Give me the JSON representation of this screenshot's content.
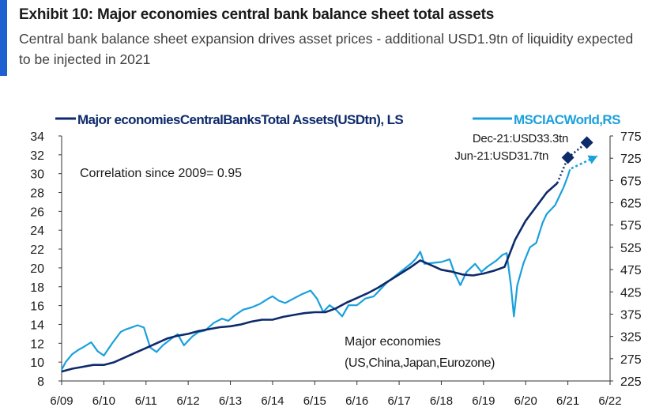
{
  "header": {
    "title": "Exhibit 10: Major economies central bank balance sheet total assets",
    "subtitle": "Central bank balance sheet expansion drives asset prices - additional USD1.9tn of liquidity expected to be injected in 2021"
  },
  "colors": {
    "accent": "#1f5fd0",
    "series_ls": "#0d2a6b",
    "series_rs": "#1aa0dc"
  },
  "chart_data": {
    "type": "line",
    "title": "",
    "x_ticks": [
      "6/09",
      "6/10",
      "6/11",
      "6/12",
      "6/13",
      "6/14",
      "6/15",
      "6/16",
      "6/17",
      "6/18",
      "6/19",
      "6/20",
      "6/21",
      "6/22"
    ],
    "y_left": {
      "min": 8,
      "max": 34,
      "ticks": [
        8,
        10,
        12,
        14,
        16,
        18,
        20,
        22,
        24,
        26,
        28,
        30,
        32,
        34
      ]
    },
    "y_right": {
      "min": 225,
      "max": 775,
      "ticks": [
        225,
        275,
        325,
        375,
        425,
        475,
        525,
        575,
        625,
        675,
        725,
        775
      ]
    },
    "legend_position": "top",
    "series": [
      {
        "name": "Major economies Central Banks Total Assets (USD tn), LS",
        "legend_label": "Major economiesCentralBanksTotal Assets(USDtn), LS",
        "axis": "left",
        "color": "#0d2a6b",
        "points": [
          [
            2009.5,
            9.0
          ],
          [
            2009.75,
            9.3
          ],
          [
            2010.0,
            9.5
          ],
          [
            2010.25,
            9.7
          ],
          [
            2010.5,
            9.7
          ],
          [
            2010.75,
            10.0
          ],
          [
            2011.0,
            10.5
          ],
          [
            2011.25,
            11.0
          ],
          [
            2011.5,
            11.5
          ],
          [
            2011.75,
            12.0
          ],
          [
            2012.0,
            12.5
          ],
          [
            2012.25,
            12.8
          ],
          [
            2012.5,
            13.0
          ],
          [
            2012.75,
            13.3
          ],
          [
            2013.0,
            13.5
          ],
          [
            2013.25,
            13.7
          ],
          [
            2013.5,
            13.8
          ],
          [
            2013.75,
            14.0
          ],
          [
            2014.0,
            14.3
          ],
          [
            2014.25,
            14.5
          ],
          [
            2014.5,
            14.5
          ],
          [
            2014.75,
            14.8
          ],
          [
            2015.0,
            15.0
          ],
          [
            2015.25,
            15.2
          ],
          [
            2015.5,
            15.3
          ],
          [
            2015.75,
            15.3
          ],
          [
            2016.0,
            15.7
          ],
          [
            2016.25,
            16.3
          ],
          [
            2016.5,
            16.8
          ],
          [
            2016.75,
            17.3
          ],
          [
            2017.0,
            17.9
          ],
          [
            2017.25,
            18.6
          ],
          [
            2017.5,
            19.3
          ],
          [
            2017.75,
            20.0
          ],
          [
            2018.0,
            20.8
          ],
          [
            2018.25,
            20.3
          ],
          [
            2018.5,
            19.8
          ],
          [
            2018.75,
            19.6
          ],
          [
            2019.0,
            19.3
          ],
          [
            2019.25,
            19.2
          ],
          [
            2019.5,
            19.4
          ],
          [
            2019.75,
            19.7
          ],
          [
            2020.0,
            20.1
          ],
          [
            2020.25,
            23.0
          ],
          [
            2020.5,
            25.0
          ],
          [
            2020.75,
            26.5
          ],
          [
            2021.0,
            28.0
          ],
          [
            2021.25,
            29.0
          ]
        ]
      },
      {
        "name": "MSCI AC World, RS",
        "legend_label": "MSCIACWorld,RS",
        "axis": "right",
        "color": "#1aa0dc",
        "points": [
          [
            2009.5,
            250
          ],
          [
            2009.6,
            268
          ],
          [
            2009.75,
            285
          ],
          [
            2009.9,
            295
          ],
          [
            2010.0,
            300
          ],
          [
            2010.2,
            312
          ],
          [
            2010.35,
            292
          ],
          [
            2010.5,
            282
          ],
          [
            2010.7,
            310
          ],
          [
            2010.9,
            335
          ],
          [
            2011.0,
            340
          ],
          [
            2011.15,
            345
          ],
          [
            2011.3,
            350
          ],
          [
            2011.45,
            345
          ],
          [
            2011.6,
            300
          ],
          [
            2011.75,
            290
          ],
          [
            2011.9,
            305
          ],
          [
            2012.1,
            320
          ],
          [
            2012.25,
            330
          ],
          [
            2012.4,
            305
          ],
          [
            2012.6,
            325
          ],
          [
            2012.75,
            335
          ],
          [
            2012.9,
            338
          ],
          [
            2013.1,
            355
          ],
          [
            2013.3,
            365
          ],
          [
            2013.45,
            360
          ],
          [
            2013.6,
            372
          ],
          [
            2013.8,
            385
          ],
          [
            2014.0,
            390
          ],
          [
            2014.2,
            398
          ],
          [
            2014.4,
            410
          ],
          [
            2014.5,
            415
          ],
          [
            2014.65,
            405
          ],
          [
            2014.8,
            400
          ],
          [
            2015.0,
            410
          ],
          [
            2015.2,
            420
          ],
          [
            2015.4,
            428
          ],
          [
            2015.55,
            410
          ],
          [
            2015.7,
            380
          ],
          [
            2015.85,
            395
          ],
          [
            2016.0,
            385
          ],
          [
            2016.15,
            370
          ],
          [
            2016.3,
            395
          ],
          [
            2016.5,
            395
          ],
          [
            2016.7,
            410
          ],
          [
            2016.9,
            415
          ],
          [
            2017.0,
            425
          ],
          [
            2017.2,
            445
          ],
          [
            2017.4,
            460
          ],
          [
            2017.6,
            475
          ],
          [
            2017.8,
            490
          ],
          [
            2017.9,
            500
          ],
          [
            2018.0,
            515
          ],
          [
            2018.1,
            488
          ],
          [
            2018.3,
            490
          ],
          [
            2018.5,
            492
          ],
          [
            2018.7,
            498
          ],
          [
            2018.8,
            470
          ],
          [
            2018.95,
            440
          ],
          [
            2019.1,
            470
          ],
          [
            2019.3,
            488
          ],
          [
            2019.45,
            470
          ],
          [
            2019.6,
            482
          ],
          [
            2019.8,
            495
          ],
          [
            2019.95,
            508
          ],
          [
            2020.05,
            512
          ],
          [
            2020.15,
            440
          ],
          [
            2020.22,
            370
          ],
          [
            2020.3,
            440
          ],
          [
            2020.45,
            490
          ],
          [
            2020.6,
            525
          ],
          [
            2020.75,
            535
          ],
          [
            2020.9,
            580
          ],
          [
            2021.0,
            600
          ],
          [
            2021.1,
            610
          ],
          [
            2021.2,
            620
          ],
          [
            2021.3,
            640
          ],
          [
            2021.4,
            660
          ],
          [
            2021.5,
            685
          ],
          [
            2021.55,
            700
          ]
        ]
      }
    ],
    "projections": [
      {
        "x": 2021.5,
        "y": 31.7,
        "axis": "left",
        "label": "Jun-21:USD31.7tn"
      },
      {
        "x": 2021.95,
        "y": 33.3,
        "axis": "left",
        "label": "Dec-21:USD33.3tn"
      }
    ],
    "projection_arrow": {
      "axis": "right",
      "from": [
        2021.58,
        702
      ],
      "to": [
        2022.2,
        730
      ]
    },
    "annotations": [
      {
        "id": "correlation",
        "text": "Correlation since 2009= 0.95"
      },
      {
        "id": "region_line1",
        "text": "Major economies"
      },
      {
        "id": "region_line2",
        "text": "(US,China,Japan,Eurozone)"
      }
    ]
  }
}
